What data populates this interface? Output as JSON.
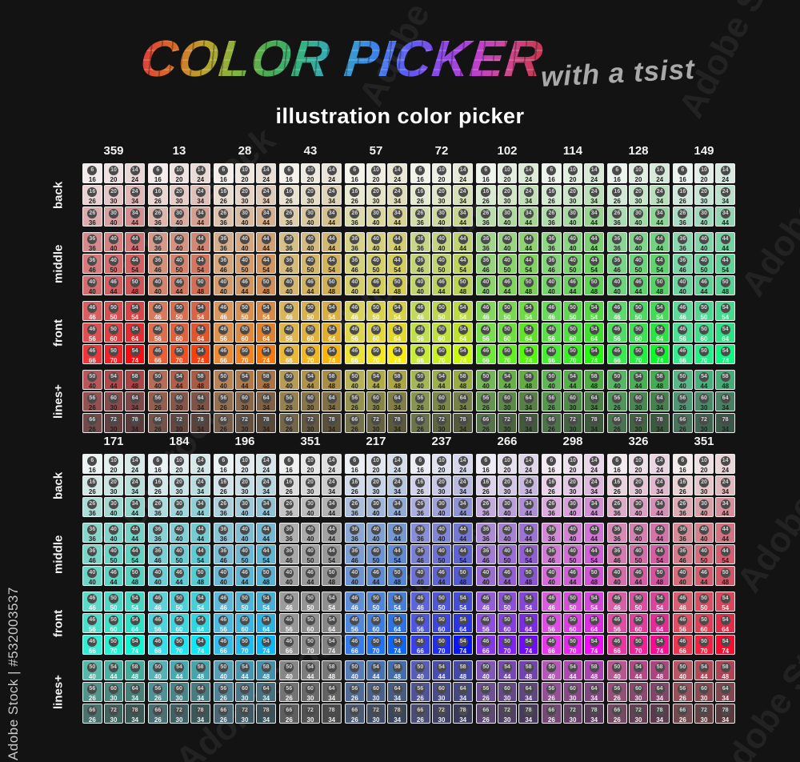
{
  "page": {
    "background": "#131313"
  },
  "watermark": {
    "side_label": "Adobe Stock | #532003537",
    "tile_label": "Adobe Stock"
  },
  "header": {
    "title": "COLOR PICKER",
    "title_suffix": "with a tsist",
    "subtitle": "illustration color picker",
    "title_gradient": [
      "#e03a3a",
      "#d96a28",
      "#bba32c",
      "#86b33c",
      "#49ad52",
      "#33b183",
      "#36a9c0",
      "#3b82e8",
      "#5b5cf0",
      "#8a4ae8",
      "#b83ed6",
      "#d04898",
      "#c53648"
    ]
  },
  "row_labels": [
    "back",
    "middle",
    "front",
    "lines+"
  ],
  "grids": [
    {
      "id": "top",
      "label_style": [
        "dark",
        "dark",
        "light",
        "dark"
      ],
      "columns": [
        {
          "label": "359",
          "hue": 359
        },
        {
          "label": "13",
          "hue": 13
        },
        {
          "label": "28",
          "hue": 28
        },
        {
          "label": "43",
          "hue": 43
        },
        {
          "label": "57",
          "hue": 57
        },
        {
          "label": "72",
          "hue": 72
        },
        {
          "label": "102",
          "hue": 102
        },
        {
          "label": "114",
          "hue": 114
        },
        {
          "label": "128",
          "hue": 128
        },
        {
          "label": "149",
          "hue": 149
        }
      ]
    },
    {
      "id": "bottom",
      "label_style": [
        "dark",
        "dark",
        "light",
        "light"
      ],
      "columns": [
        {
          "label": "171",
          "hue": 171
        },
        {
          "label": "184",
          "hue": 184
        },
        {
          "label": "196",
          "hue": 196
        },
        {
          "label": "351",
          "hue": 351,
          "gray": true
        },
        {
          "label": "217",
          "hue": 217
        },
        {
          "label": "237",
          "hue": 237
        },
        {
          "label": "266",
          "hue": 266
        },
        {
          "label": "298",
          "hue": 298
        },
        {
          "label": "326",
          "hue": 326
        },
        {
          "label": "351",
          "hue": 351
        }
      ]
    }
  ],
  "swatch_groups": [
    {
      "name": "back",
      "rows": [
        {
          "circles": [
            6,
            10,
            14
          ],
          "labels": [
            16,
            20,
            24
          ],
          "sat": [
            28,
            30,
            33
          ],
          "light": [
            94,
            91,
            88
          ]
        },
        {
          "circles": [
            16,
            20,
            24
          ],
          "labels": [
            26,
            30,
            34
          ],
          "sat": [
            36,
            38,
            40
          ],
          "light": [
            87,
            84,
            80
          ]
        },
        {
          "circles": [
            26,
            30,
            34
          ],
          "labels": [
            36,
            40,
            44
          ],
          "sat": [
            42,
            44,
            46
          ],
          "light": [
            77,
            74,
            70
          ]
        }
      ]
    },
    {
      "name": "middle",
      "rows": [
        {
          "circles": [
            36,
            40,
            44
          ],
          "labels": [
            36,
            40,
            44
          ],
          "sat": [
            48,
            50,
            52
          ],
          "light": [
            69,
            67,
            64
          ]
        },
        {
          "circles": [
            36,
            40,
            44
          ],
          "labels": [
            46,
            50,
            54
          ],
          "sat": [
            52,
            55,
            58
          ],
          "light": [
            66,
            63,
            60
          ]
        },
        {
          "circles": [
            40,
            46,
            50
          ],
          "labels": [
            40,
            44,
            48
          ],
          "sat": [
            55,
            58,
            60
          ],
          "light": [
            63,
            60,
            58
          ]
        }
      ]
    },
    {
      "name": "front",
      "rows": [
        {
          "circles": [
            46,
            50,
            54
          ],
          "labels": [
            46,
            50,
            54
          ],
          "sat": [
            62,
            64,
            66
          ],
          "light": [
            61,
            58,
            56
          ]
        },
        {
          "circles": [
            46,
            50,
            54
          ],
          "labels": [
            56,
            60,
            64
          ],
          "sat": [
            68,
            72,
            76
          ],
          "light": [
            59,
            56,
            53
          ]
        },
        {
          "circles": [
            46,
            50,
            54
          ],
          "labels": [
            66,
            70,
            74
          ],
          "sat": [
            82,
            88,
            95
          ],
          "light": [
            57,
            54,
            51
          ]
        }
      ]
    },
    {
      "name": "lines+",
      "rows": [
        {
          "circles": [
            50,
            54,
            58
          ],
          "labels": [
            40,
            44,
            48
          ],
          "sat": [
            40,
            42,
            44
          ],
          "light": [
            53,
            49,
            47
          ]
        },
        {
          "circles": [
            56,
            60,
            64
          ],
          "labels": [
            26,
            30,
            34
          ],
          "sat": [
            30,
            30,
            30
          ],
          "light": [
            45,
            41,
            39
          ]
        },
        {
          "circles": [
            66,
            72,
            78
          ],
          "labels": [
            26,
            30,
            34
          ],
          "sat": [
            22,
            22,
            22
          ],
          "light": [
            37,
            32,
            29
          ]
        }
      ]
    }
  ]
}
